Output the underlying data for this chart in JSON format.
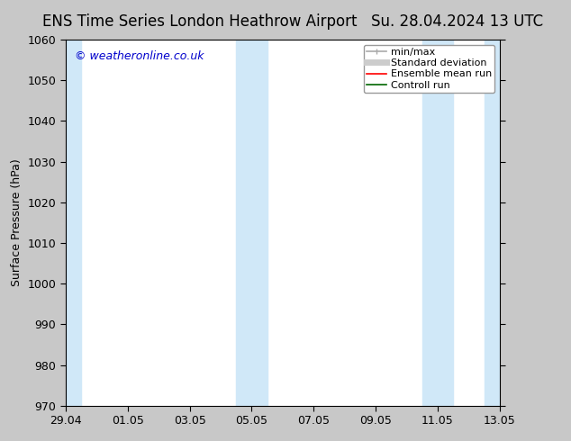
{
  "title_left": "ENS Time Series London Heathrow Airport",
  "title_right": "Su. 28.04.2024 13 UTC",
  "ylabel": "Surface Pressure (hPa)",
  "ylim": [
    970,
    1060
  ],
  "yticks": [
    970,
    980,
    990,
    1000,
    1010,
    1020,
    1030,
    1040,
    1050,
    1060
  ],
  "xtick_labels": [
    "29.04",
    "01.05",
    "03.05",
    "05.05",
    "07.05",
    "09.05",
    "11.05",
    "13.05"
  ],
  "xlim": [
    0,
    14
  ],
  "shaded_bands": [
    {
      "x_start": 0.0,
      "x_end": 0.5,
      "color": "#d0e8f8"
    },
    {
      "x_start": 5.5,
      "x_end": 6.5,
      "color": "#d0e8f8"
    },
    {
      "x_start": 11.5,
      "x_end": 12.5,
      "color": "#d0e8f8"
    },
    {
      "x_start": 13.5,
      "x_end": 14.0,
      "color": "#d0e8f8"
    }
  ],
  "watermark_text": "© weatheronline.co.uk",
  "watermark_color": "#0000cc",
  "background_color": "#c8c8c8",
  "plot_bg_color": "#ffffff",
  "legend_items": [
    {
      "label": "min/max",
      "color": "#aaaaaa",
      "lw": 1.2
    },
    {
      "label": "Standard deviation",
      "color": "#cccccc",
      "lw": 5
    },
    {
      "label": "Ensemble mean run",
      "color": "#ff0000",
      "lw": 1.2
    },
    {
      "label": "Controll run",
      "color": "#006600",
      "lw": 1.2
    }
  ],
  "title_fontsize": 12,
  "axis_fontsize": 9,
  "tick_fontsize": 9,
  "legend_fontsize": 8
}
